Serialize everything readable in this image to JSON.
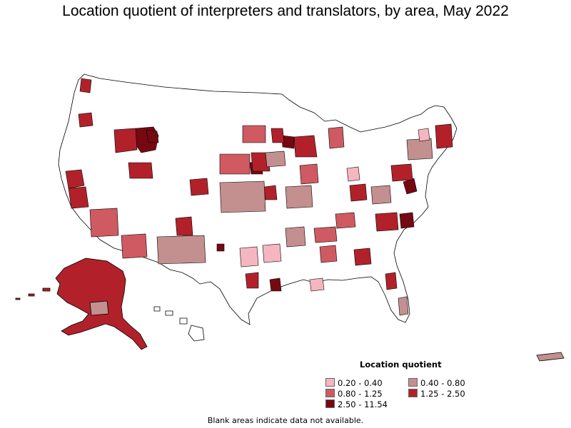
{
  "title": "Location quotient of interpreters and translators, by area, May 2022",
  "legend": {
    "title": "Location quotient",
    "items": [
      {
        "range": "0.20 - 0.40",
        "color": "#f6b6c0"
      },
      {
        "range": "0.40 - 0.80",
        "color": "#c48f8f"
      },
      {
        "range": "0.80 - 1.25",
        "color": "#cf5a62"
      },
      {
        "range": "1.25 - 2.50",
        "color": "#b2212a"
      },
      {
        "range": "2.50 - 11.54",
        "color": "#760810"
      }
    ]
  },
  "footnote": "Blank areas indicate data not available.",
  "colors": {
    "no_data": "#ffffff",
    "border": "#000000"
  }
}
